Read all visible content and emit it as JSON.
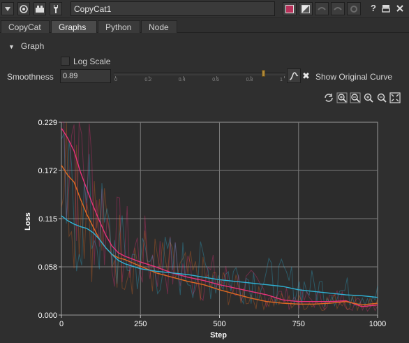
{
  "window": {
    "node_name": "CopyCat1",
    "help_label": "?"
  },
  "icons": {
    "collapse": "triangle-down-icon",
    "settings": "node-settings-icon",
    "viewer": "viewer-icon",
    "tools": "wrench-icon",
    "color_swatch": "node-color-icon",
    "ink": "ink-color-icon",
    "undo": "undo-icon",
    "redo": "redo-icon",
    "revert": "revert-icon",
    "float": "float-panel-icon",
    "close": "close-icon"
  },
  "tabs": [
    {
      "label": "CopyCat",
      "active": false
    },
    {
      "label": "Graphs",
      "active": true
    },
    {
      "label": "Python",
      "active": false
    },
    {
      "label": "Node",
      "active": false
    }
  ],
  "graph_section": {
    "title": "Graph",
    "log_scale_label": "Log Scale",
    "log_scale_checked": false,
    "smoothness_label": "Smoothness",
    "smoothness_value": "0.89",
    "slider_fraction": 0.89,
    "slider_ticks": [
      "0",
      "0.2",
      "0.4",
      "0.6",
      "0.8",
      "1"
    ],
    "show_original_label": "Show Original Curve",
    "show_original_checked": true,
    "tools": [
      "refresh-icon",
      "zoom-fit-icon",
      "zoom-out-icon",
      "zoom-in-icon",
      "zoom-reset-icon",
      "fit-view-icon"
    ]
  },
  "chart_data": {
    "type": "line",
    "xlabel": "Step",
    "ylabel": "Loss",
    "xlim": [
      0,
      1000
    ],
    "ylim": [
      0,
      0.229
    ],
    "xticks": [
      "0",
      "250",
      "500",
      "750",
      "1000"
    ],
    "yticks": [
      "0.000",
      "0.058",
      "0.115",
      "0.172",
      "0.229"
    ],
    "grid": true,
    "series": [
      {
        "color": "#e8327a",
        "x": [
          0,
          20,
          40,
          60,
          80,
          100,
          120,
          140,
          160,
          180,
          200,
          250,
          300,
          350,
          400,
          450,
          500,
          550,
          600,
          650,
          700,
          750,
          800,
          850,
          900,
          950,
          1000
        ],
        "y": [
          0.222,
          0.21,
          0.195,
          0.17,
          0.15,
          0.13,
          0.112,
          0.095,
          0.082,
          0.074,
          0.07,
          0.063,
          0.057,
          0.05,
          0.045,
          0.041,
          0.036,
          0.032,
          0.028,
          0.024,
          0.018,
          0.016,
          0.016,
          0.016,
          0.017,
          0.01,
          0.012
        ]
      },
      {
        "color": "#e06a22",
        "x": [
          0,
          20,
          40,
          60,
          80,
          100,
          120,
          140,
          160,
          180,
          200,
          250,
          300,
          350,
          400,
          450,
          500,
          550,
          600,
          650,
          700,
          750,
          800,
          850,
          900,
          950,
          1000
        ],
        "y": [
          0.178,
          0.166,
          0.158,
          0.138,
          0.12,
          0.105,
          0.09,
          0.08,
          0.072,
          0.068,
          0.066,
          0.058,
          0.05,
          0.045,
          0.04,
          0.036,
          0.03,
          0.025,
          0.02,
          0.016,
          0.014,
          0.013,
          0.013,
          0.014,
          0.016,
          0.012,
          0.014
        ]
      },
      {
        "color": "#2fb3d6",
        "x": [
          0,
          20,
          40,
          60,
          80,
          100,
          120,
          140,
          160,
          180,
          200,
          250,
          300,
          350,
          400,
          450,
          500,
          550,
          600,
          650,
          700,
          750,
          800,
          850,
          900,
          950,
          1000
        ],
        "y": [
          0.118,
          0.112,
          0.108,
          0.105,
          0.103,
          0.098,
          0.09,
          0.08,
          0.072,
          0.065,
          0.061,
          0.055,
          0.052,
          0.05,
          0.048,
          0.045,
          0.042,
          0.04,
          0.038,
          0.036,
          0.034,
          0.03,
          0.028,
          0.026,
          0.024,
          0.023,
          0.021
        ]
      }
    ]
  }
}
